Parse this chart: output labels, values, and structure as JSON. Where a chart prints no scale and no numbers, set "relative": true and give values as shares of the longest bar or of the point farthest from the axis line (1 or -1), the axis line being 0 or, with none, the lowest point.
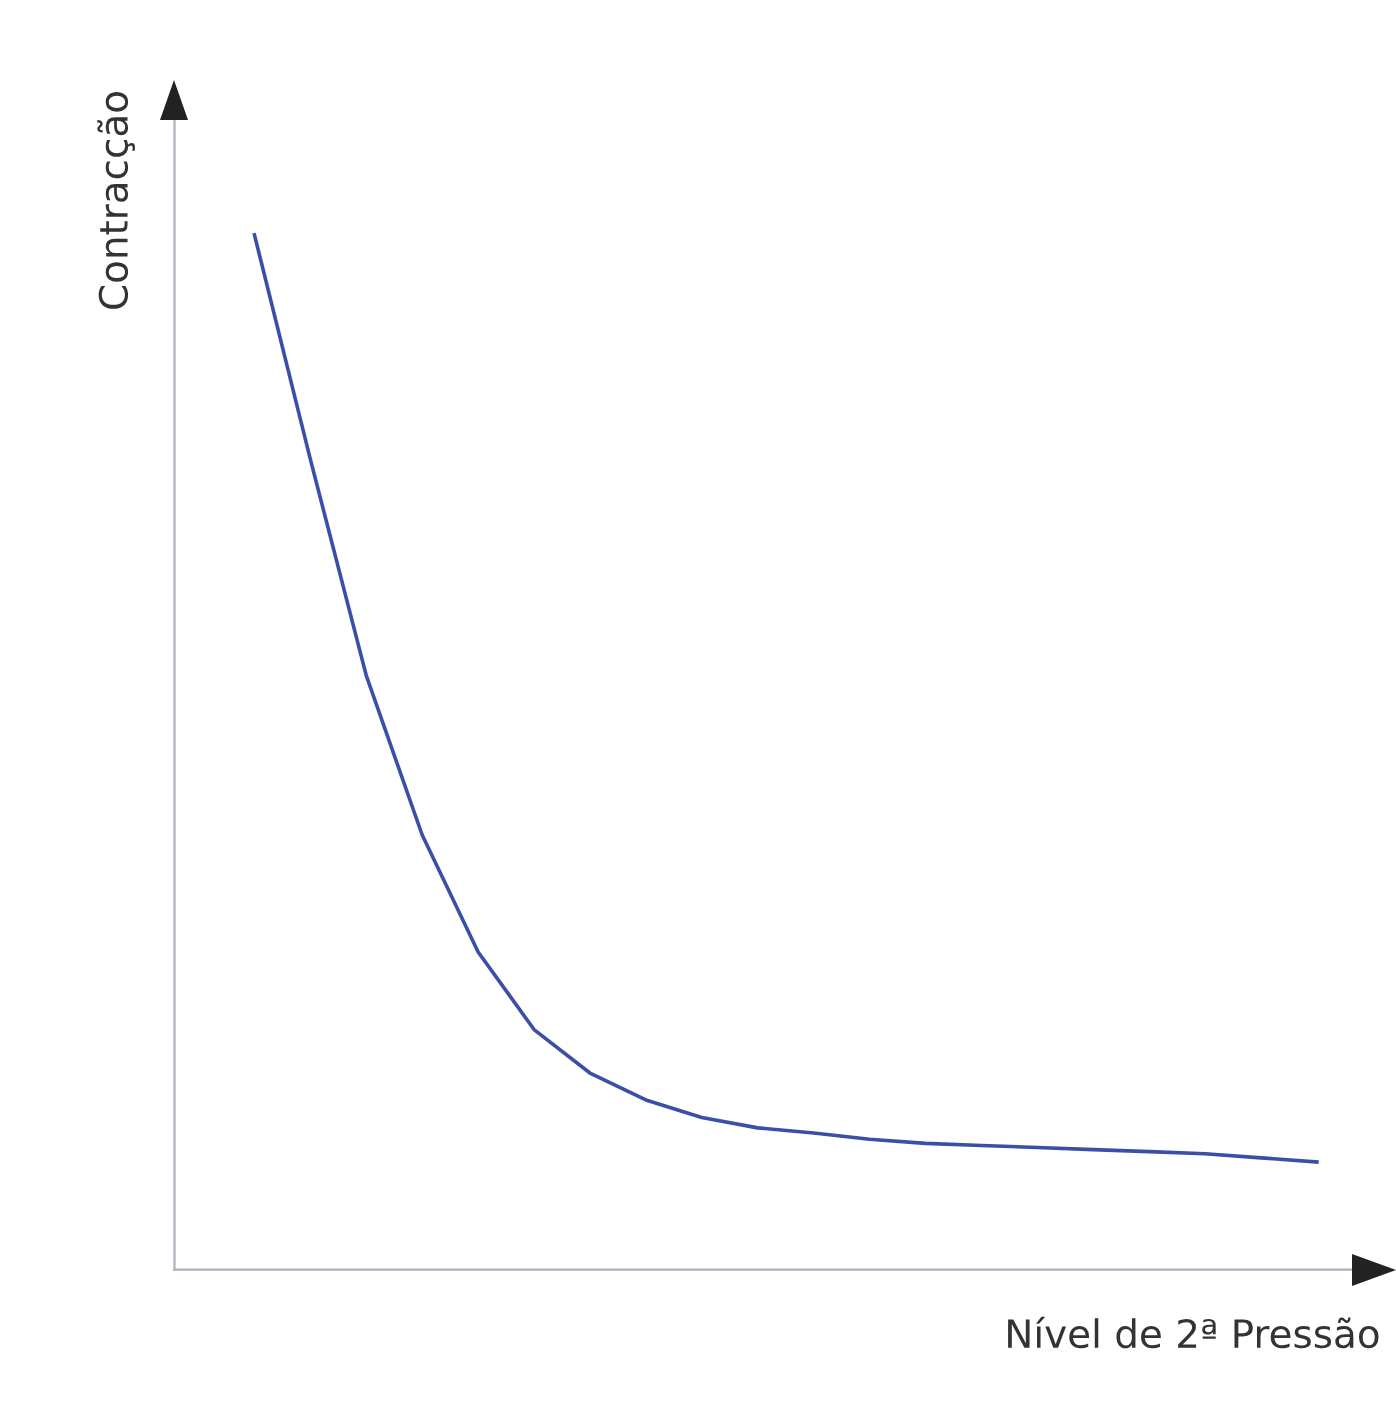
{
  "chart_data": {
    "type": "line",
    "relative": true,
    "xlabel": "Nível de 2ª Pressão",
    "ylabel": "Contracção",
    "categories": [
      null,
      null,
      null,
      null,
      null,
      null,
      null,
      null,
      null,
      null,
      null,
      null,
      null,
      null,
      null,
      null,
      null,
      null,
      null,
      null
    ],
    "series": [
      {
        "color": "#3a4fa8",
        "values": [
          1.0,
          0.783,
          0.574,
          0.42,
          0.307,
          0.232,
          0.19,
          0.164,
          0.147,
          0.137,
          0.132,
          0.126,
          0.122,
          0.12,
          0.118,
          0.116,
          0.114,
          0.112,
          0.108,
          0.104
        ]
      }
    ],
    "legend": false,
    "marker": "none",
    "line_style": "solid"
  }
}
